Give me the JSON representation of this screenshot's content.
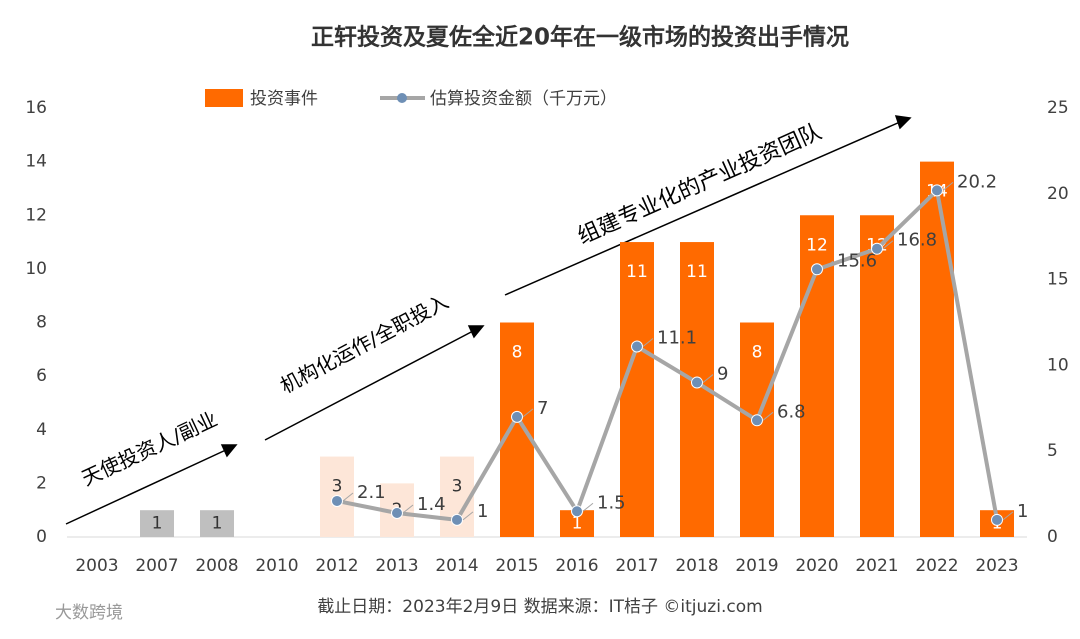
{
  "chart_data": {
    "type": "bar_line",
    "title": "正轩投资及夏佐全近20年在一级市场的投资出手情况",
    "categories": [
      "2003",
      "2007",
      "2008",
      "2010",
      "2012",
      "2013",
      "2014",
      "2015",
      "2016",
      "2017",
      "2018",
      "2019",
      "2020",
      "2021",
      "2022",
      "2023"
    ],
    "series": [
      {
        "name": "投资事件",
        "type": "bar",
        "color": "#ff6a00",
        "colors": [
          null,
          "#bfbfbf",
          "#bfbfbf",
          null,
          "#fde6d8",
          "#fde6d8",
          "#fde6d8",
          "#ff6a00",
          "#ff6a00",
          "#ff6a00",
          "#ff6a00",
          "#ff6a00",
          "#ff6a00",
          "#ff6a00",
          "#ff6a00",
          "#ff6a00"
        ],
        "values": [
          null,
          1,
          1,
          null,
          3,
          2,
          3,
          8,
          1,
          11,
          11,
          8,
          12,
          12,
          14,
          1
        ]
      },
      {
        "name": "估算投资金额（千万元）",
        "type": "line",
        "axis": "y2",
        "color": "#a6a6a6",
        "marker_color": "#6e8fb5",
        "values": [
          null,
          null,
          null,
          null,
          2.1,
          1.4,
          1,
          7,
          1.5,
          11.1,
          9,
          6.8,
          15.6,
          16.8,
          20.2,
          1
        ]
      }
    ],
    "ylim": [
      0,
      16
    ],
    "yticks": [
      0,
      2,
      4,
      6,
      8,
      10,
      12,
      14,
      16
    ],
    "y2lim": [
      0,
      25
    ],
    "y2ticks": [
      0,
      5,
      10,
      15,
      20,
      25
    ],
    "annotations": [
      "天使投资人/副业",
      "机构化运作/全职投入",
      "组建专业化的产业投资团队"
    ],
    "footer": "截止日期：2023年2月9日   数据来源：IT桔子 ©itjuzi.com",
    "watermark": "大数跨境"
  }
}
